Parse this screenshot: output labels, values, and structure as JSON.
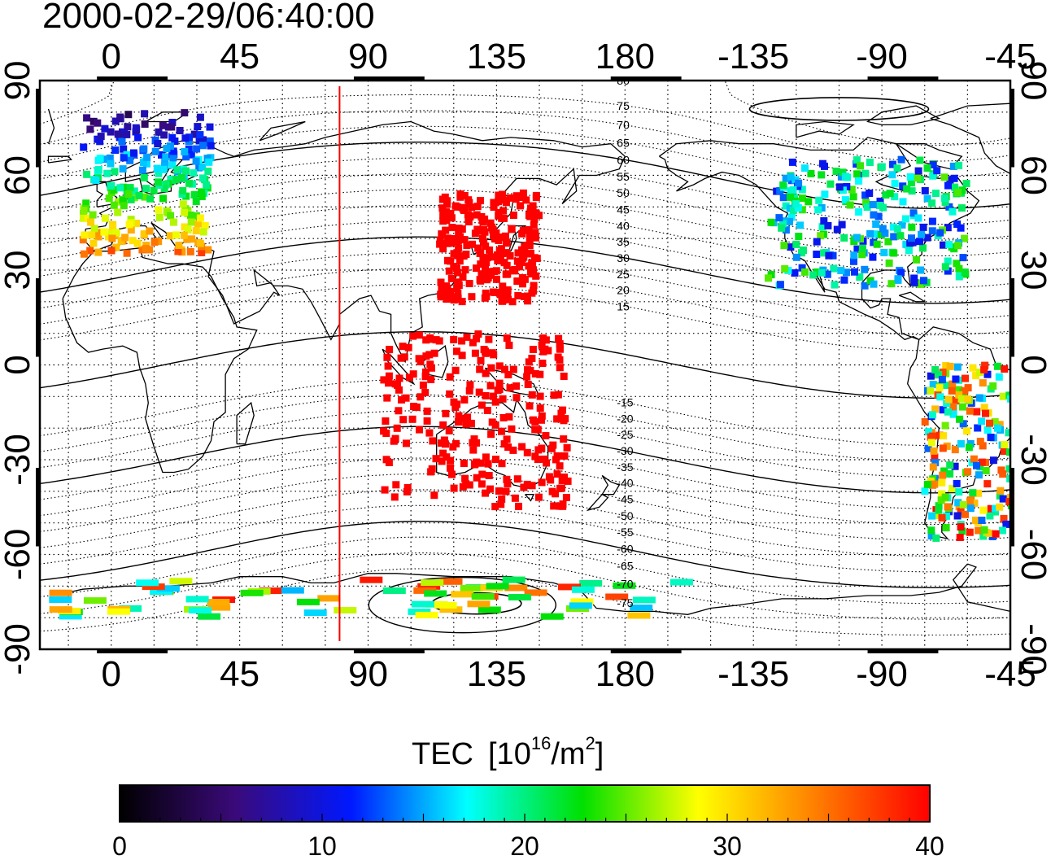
{
  "title": "2000-02-29/06:40:00",
  "colorbar": {
    "label_main": "TEC",
    "label_unit_prefix": "[10",
    "label_unit_exp": "16",
    "label_unit_mid": "/m",
    "label_unit_exp2": "2",
    "label_unit_suffix": "]",
    "min": 0,
    "max": 40,
    "ticks": [
      0,
      10,
      20,
      30,
      40
    ],
    "colormap": [
      "#000000",
      "#3a0a7a",
      "#0018ff",
      "#00ffff",
      "#00e000",
      "#ffff00",
      "#ff8000",
      "#ff0000"
    ]
  },
  "axes": {
    "lon_tick_labels": [
      "0",
      "45",
      "90",
      "135",
      "180",
      "-135",
      "-90",
      "-45"
    ],
    "lat_tick_labels": [
      "90",
      "60",
      "30",
      "0",
      "-30",
      "-60",
      "-90"
    ]
  },
  "magnetic_latitude_labels": [
    "80",
    "75",
    "70",
    "65",
    "60",
    "55",
    "50",
    "45",
    "40",
    "35",
    "30",
    "25",
    "20",
    "15",
    "-15",
    "-20",
    "-25",
    "-30",
    "-35",
    "-40",
    "-45",
    "-50",
    "-55",
    "-60",
    "-65",
    "-70",
    "-75"
  ],
  "chart_data": {
    "type": "heatmap",
    "title": "2000-02-29/06:40:00",
    "value_label": "TEC [10^16/m^2]",
    "colorbar_range": [
      0,
      40
    ],
    "xlim_lon": [
      -25,
      315
    ],
    "ylim_lat": [
      -90,
      90
    ],
    "grid": true,
    "projection": "equirectangular",
    "marked_meridian_lon": 80,
    "marked_meridian_color": "#ff0000",
    "tec_regions": [
      {
        "name": "Europe",
        "lon": [
          -10,
          35
        ],
        "lat": [
          35,
          80
        ],
        "tec_range": [
          5,
          35
        ]
      },
      {
        "name": "East Asia",
        "lon": [
          115,
          150
        ],
        "lat": [
          20,
          55
        ],
        "tec": 40
      },
      {
        "name": "North America",
        "lon": [
          -130,
          -60
        ],
        "lat": [
          25,
          65
        ],
        "tec_range": [
          10,
          25
        ]
      },
      {
        "name": "Southeast Asia and Australia",
        "lon": [
          95,
          160
        ],
        "lat": [
          -45,
          10
        ],
        "tec": 40
      },
      {
        "name": "South America",
        "lon": [
          -75,
          -35
        ],
        "lat": [
          -55,
          0
        ],
        "tec_range": [
          10,
          40
        ]
      },
      {
        "name": "Antarctica",
        "lon": [
          -20,
          200
        ],
        "lat": [
          -80,
          -68
        ],
        "tec_range": [
          15,
          40
        ]
      }
    ]
  }
}
